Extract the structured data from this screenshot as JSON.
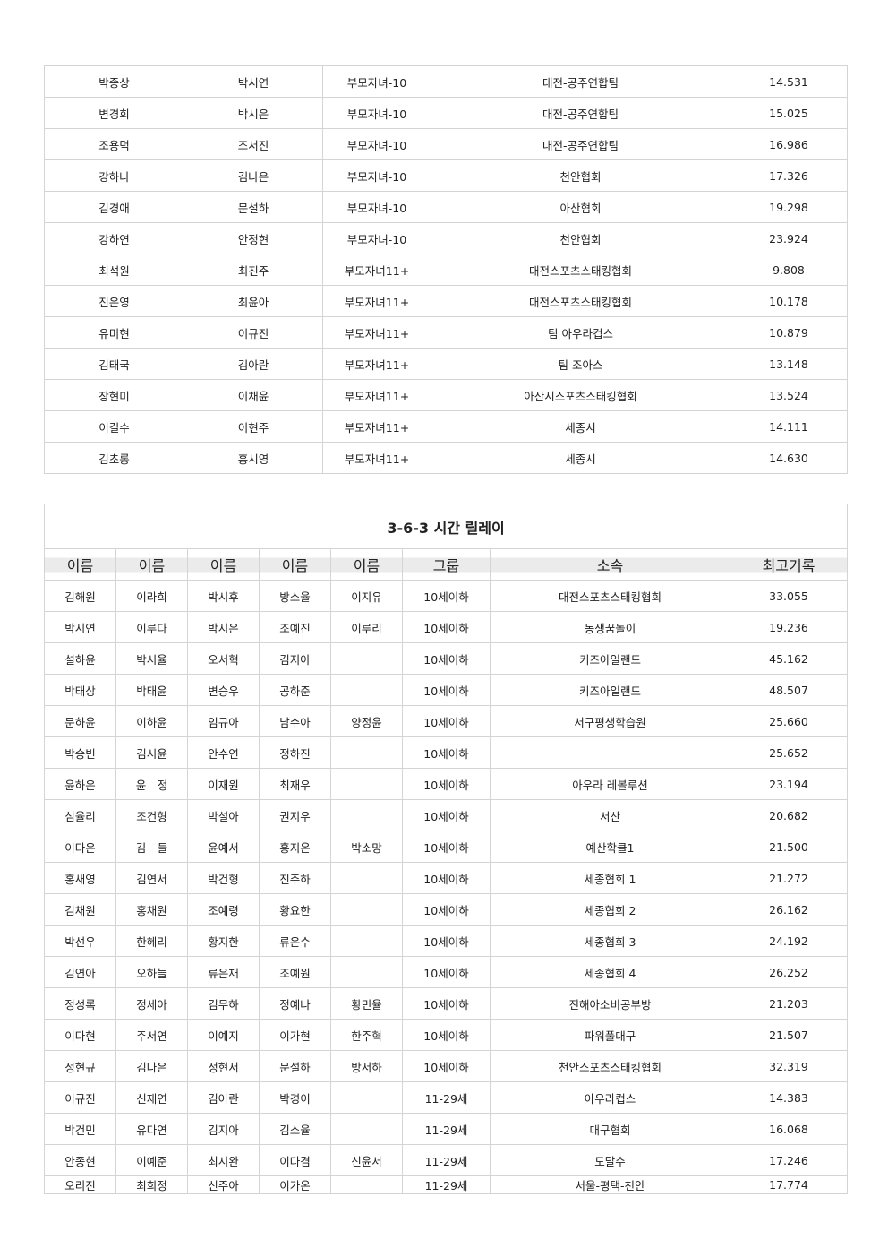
{
  "table1": {
    "rows": [
      [
        "박종상",
        "박시연",
        "부모자녀-10",
        "대전-공주연합팀",
        "14.531"
      ],
      [
        "변경희",
        "박시은",
        "부모자녀-10",
        "대전-공주연합팀",
        "15.025"
      ],
      [
        "조용덕",
        "조서진",
        "부모자녀-10",
        "대전-공주연합팀",
        "16.986"
      ],
      [
        "강하나",
        "김나은",
        "부모자녀-10",
        "천안협회",
        "17.326"
      ],
      [
        "김경애",
        "문설하",
        "부모자녀-10",
        "아산협회",
        "19.298"
      ],
      [
        "강하연",
        "안정현",
        "부모자녀-10",
        "천안협회",
        "23.924"
      ],
      [
        "최석원",
        "최진주",
        "부모자녀11+",
        "대전스포츠스태킹협회",
        "9.808"
      ],
      [
        "진은영",
        "최윤아",
        "부모자녀11+",
        "대전스포츠스태킹협회",
        "10.178"
      ],
      [
        "유미현",
        "이규진",
        "부모자녀11+",
        "팀 아우라컵스",
        "10.879"
      ],
      [
        "김태국",
        "김아란",
        "부모자녀11+",
        "팀 조아스",
        "13.148"
      ],
      [
        "장현미",
        "이채윤",
        "부모자녀11+",
        "아산시스포츠스태킹협회",
        "13.524"
      ],
      [
        "이길수",
        "이현주",
        "부모자녀11+",
        "세종시",
        "14.111"
      ],
      [
        "김초롱",
        "홍시영",
        "부모자녀11+",
        "세종시",
        "14.630"
      ]
    ]
  },
  "table2": {
    "title": "3-6-3 시간 릴레이",
    "headers": [
      "이름",
      "이름",
      "이름",
      "이름",
      "이름",
      "그룹",
      "소속",
      "최고기록"
    ],
    "rows": [
      [
        "김해원",
        "이라희",
        "박시후",
        "방소율",
        "이지유",
        "10세이하",
        "대전스포츠스태킹협회",
        "33.055"
      ],
      [
        "박시연",
        "이루다",
        "박시은",
        "조예진",
        "이루리",
        "10세이하",
        "동생꿈돌이",
        "19.236"
      ],
      [
        "설하윤",
        "박시율",
        "오서혁",
        "김지아",
        "",
        "10세이하",
        "키즈아일랜드",
        "45.162"
      ],
      [
        "박태상",
        "박태윤",
        "변승우",
        "공하준",
        "",
        "10세이하",
        "키즈아일랜드",
        "48.507"
      ],
      [
        "문하윤",
        "이하윤",
        "임규아",
        "남수아",
        "양정윤",
        "10세이하",
        "서구평생학습원",
        "25.660"
      ],
      [
        "박승빈",
        "김시윤",
        "안수연",
        "정하진",
        "",
        "10세이하",
        "",
        "25.652"
      ],
      [
        "윤하은",
        "윤　정",
        "이재원",
        "최재우",
        "",
        "10세이하",
        "아우라 레볼루션",
        "23.194"
      ],
      [
        "심율리",
        "조건형",
        "박설아",
        "권지우",
        "",
        "10세이하",
        "서산",
        "20.682"
      ],
      [
        "이다은",
        "김　들",
        "윤예서",
        "홍지온",
        "박소망",
        "10세이하",
        "예산학클1",
        "21.500"
      ],
      [
        "홍새영",
        "김연서",
        "박건형",
        "진주하",
        "",
        "10세이하",
        "세종협회 1",
        "21.272"
      ],
      [
        "김채원",
        "홍채원",
        "조예령",
        "황요한",
        "",
        "10세이하",
        "세종협회 2",
        "26.162"
      ],
      [
        "박선우",
        "한혜리",
        "황지한",
        "류은수",
        "",
        "10세이하",
        "세종협회 3",
        "24.192"
      ],
      [
        "김연아",
        "오하늘",
        "류은재",
        "조예원",
        "",
        "10세이하",
        "세종협회 4",
        "26.252"
      ],
      [
        "정성록",
        "정세아",
        "김무하",
        "정예나",
        "황민율",
        "10세이하",
        "진해아소비공부방",
        "21.203"
      ],
      [
        "이다현",
        "주서연",
        "이예지",
        "이가현",
        "한주혁",
        "10세이하",
        "파워풀대구",
        "21.507"
      ],
      [
        "정현규",
        "김나은",
        "정현서",
        "문설하",
        "방서하",
        "10세이하",
        "천안스포츠스태킹협회",
        "32.319"
      ],
      [
        "이규진",
        "신재연",
        "김아란",
        "박경이",
        "",
        "11-29세",
        "아우라컵스",
        "14.383"
      ],
      [
        "박건민",
        "유다연",
        "김지아",
        "김소율",
        "",
        "11-29세",
        "대구협회",
        "16.068"
      ],
      [
        "안종현",
        "이예준",
        "최시완",
        "이다겸",
        "신윤서",
        "11-29세",
        "도달수",
        "17.246"
      ],
      [
        "오리진",
        "최희정",
        "신주아",
        "이가온",
        "",
        "11-29세",
        "서울-평택-천안",
        "17.774"
      ]
    ]
  }
}
